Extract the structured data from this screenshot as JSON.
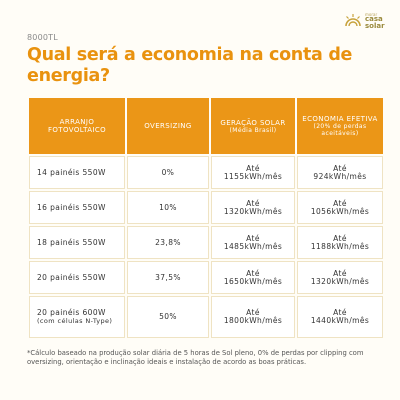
{
  "model_label": "8000TL",
  "brand": {
    "small": "morar",
    "line1": "casa",
    "line2": "solar"
  },
  "headline": "Qual será a economia na conta de energia?",
  "table": {
    "headers": [
      {
        "main": "ARRANJO FOTOVOLTAICO",
        "sub": ""
      },
      {
        "main": "OVERSIZING",
        "sub": ""
      },
      {
        "main": "GERAÇÃO SOLAR",
        "sub": "(Média Brasil)"
      },
      {
        "main": "ECONOMIA EFETIVA",
        "sub": "(20% de perdas aceitáveis)"
      }
    ],
    "rows": [
      {
        "arranjo": "14 painéis 550W",
        "arranjo_sub": "",
        "oversizing": "0%",
        "geracao_pre": "Até",
        "geracao": "1155kWh/mês",
        "economia_pre": "Até",
        "economia": "924kWh/mês"
      },
      {
        "arranjo": "16 painéis 550W",
        "arranjo_sub": "",
        "oversizing": "10%",
        "geracao_pre": "Até",
        "geracao": "1320kWh/mês",
        "economia_pre": "Até",
        "economia": "1056kWh/mês"
      },
      {
        "arranjo": "18 painéis 550W",
        "arranjo_sub": "",
        "oversizing": "23,8%",
        "geracao_pre": "Até",
        "geracao": "1485kWh/mês",
        "economia_pre": "Até",
        "economia": "1188kWh/mês"
      },
      {
        "arranjo": "20 painéis 550W",
        "arranjo_sub": "",
        "oversizing": "37,5%",
        "geracao_pre": "Até",
        "geracao": "1650kWh/mês",
        "economia_pre": "Até",
        "economia": "1320kWh/mês"
      },
      {
        "arranjo": "20 painéis 600W",
        "arranjo_sub": "(com células N-Type)",
        "oversizing": "50%",
        "geracao_pre": "Até",
        "geracao": "1800kWh/mês",
        "economia_pre": "Até",
        "economia": "1440kWh/mês"
      }
    ]
  },
  "footnote": "*Cálculo baseado na produção solar diária de 5 horas de Sol pleno, 0% de perdas por clipping com oversizing, orientação e inclinação ideais e instalação de acordo as boas práticas.",
  "colors": {
    "accent": "#eb9617",
    "headline": "#e9920e",
    "background": "#fffdf7"
  }
}
